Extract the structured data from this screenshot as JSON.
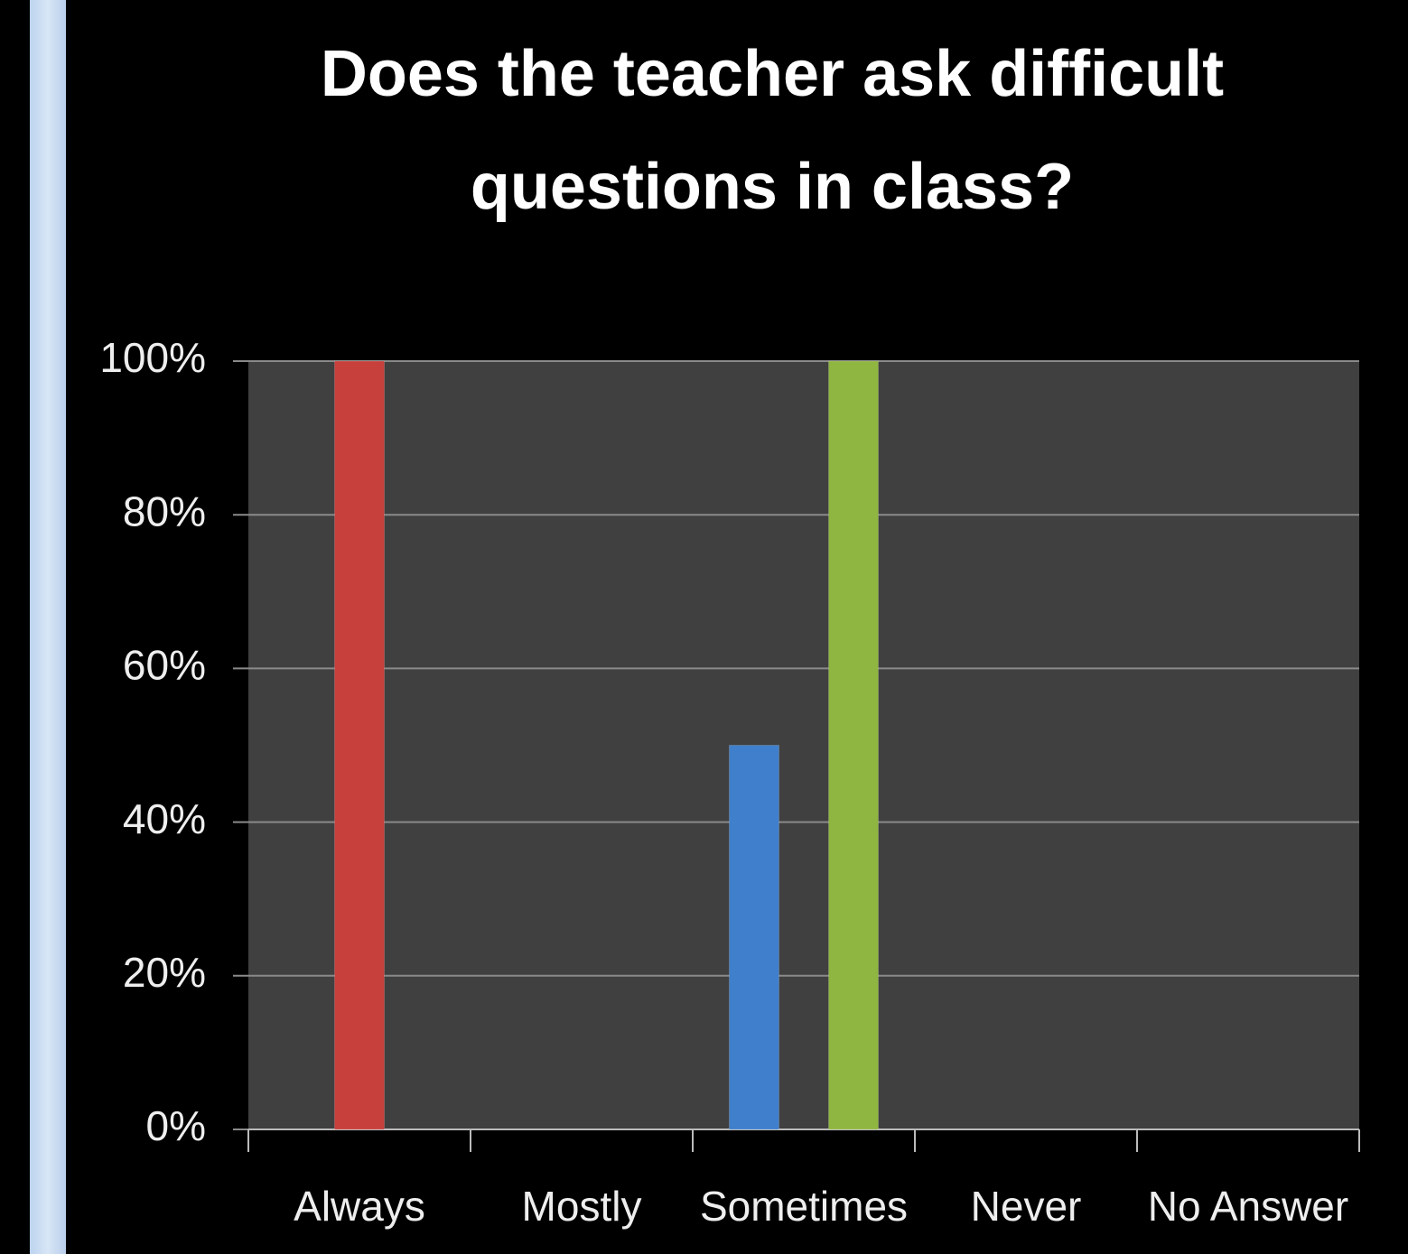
{
  "chart_data": {
    "type": "bar",
    "title": "Does the teacher ask difficult questions in class?",
    "categories": [
      "Always",
      "Mostly",
      "Sometimes",
      "Never",
      "No Answer"
    ],
    "series": [
      {
        "color": "#3f7fcc",
        "values": [
          0,
          0,
          50,
          0,
          0
        ]
      },
      {
        "color": "#c8403b",
        "values": [
          100,
          0,
          0,
          0,
          0
        ]
      },
      {
        "color": "#8fb640",
        "values": [
          0,
          0,
          100,
          0,
          0
        ]
      }
    ],
    "ylim": [
      0,
      100
    ],
    "yticks": [
      {
        "value": 0,
        "label": "0%"
      },
      {
        "value": 20,
        "label": "20%"
      },
      {
        "value": 40,
        "label": "40%"
      },
      {
        "value": 60,
        "label": "60%"
      },
      {
        "value": 80,
        "label": "80%"
      },
      {
        "value": 100,
        "label": "100%"
      }
    ],
    "grid": true
  }
}
